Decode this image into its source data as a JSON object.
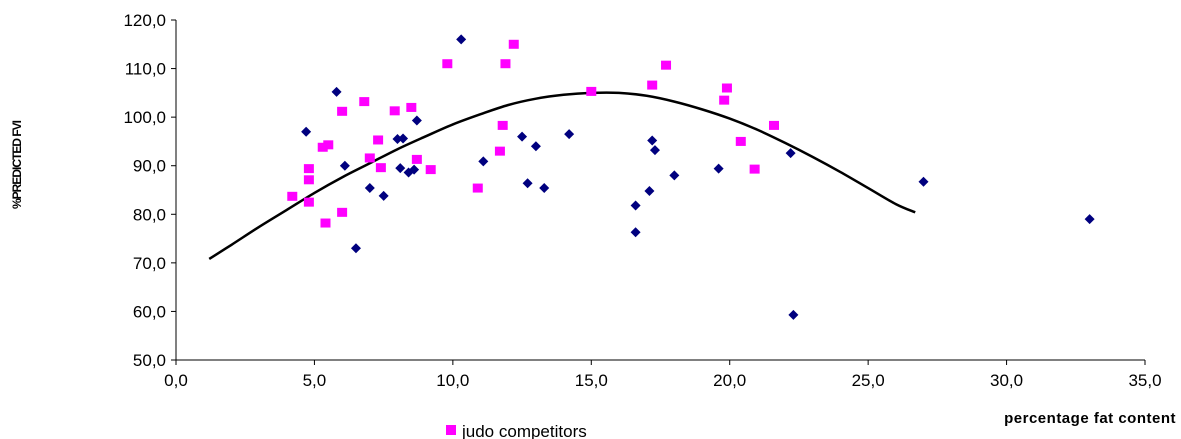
{
  "chart_data": {
    "type": "scatter",
    "xlabel": "percentage fat content",
    "ylabel": "%PREDICTED FVI",
    "xlim": [
      0,
      35
    ],
    "ylim": [
      50,
      120
    ],
    "x_ticks": [
      "0,0",
      "5,0",
      "10,0",
      "15,0",
      "20,0",
      "25,0",
      "30,0",
      "35,0"
    ],
    "y_ticks": [
      "50,0",
      "60,0",
      "70,0",
      "80,0",
      "90,0",
      "100,0",
      "110,0",
      "120,0"
    ],
    "grid": false,
    "legend_position": "bottom",
    "series": [
      {
        "marker": "diamond",
        "color": "#00007f",
        "points": [
          [
            4.7,
            97.0
          ],
          [
            5.8,
            105.2
          ],
          [
            6.1,
            90.0
          ],
          [
            6.5,
            73.0
          ],
          [
            7.0,
            85.4
          ],
          [
            7.5,
            83.8
          ],
          [
            8.0,
            95.5
          ],
          [
            8.1,
            89.5
          ],
          [
            8.2,
            95.6
          ],
          [
            8.4,
            88.6
          ],
          [
            8.6,
            89.2
          ],
          [
            8.7,
            99.3
          ],
          [
            10.3,
            116.0
          ],
          [
            11.1,
            90.9
          ],
          [
            12.5,
            96.0
          ],
          [
            12.7,
            86.4
          ],
          [
            13.0,
            94.0
          ],
          [
            13.3,
            85.4
          ],
          [
            14.2,
            96.5
          ],
          [
            16.6,
            81.8
          ],
          [
            16.6,
            76.3
          ],
          [
            17.1,
            84.8
          ],
          [
            17.2,
            95.2
          ],
          [
            17.3,
            93.2
          ],
          [
            18.0,
            88.0
          ],
          [
            19.6,
            89.4
          ],
          [
            22.2,
            92.6
          ],
          [
            22.3,
            59.3
          ],
          [
            27.0,
            86.7
          ],
          [
            33.0,
            79.0
          ]
        ]
      },
      {
        "name": "judo competitors",
        "marker": "square",
        "color": "#ff00ff",
        "points": [
          [
            4.2,
            83.7
          ],
          [
            4.8,
            89.4
          ],
          [
            4.8,
            87.1
          ],
          [
            4.8,
            82.5
          ],
          [
            5.3,
            93.8
          ],
          [
            5.4,
            78.2
          ],
          [
            5.5,
            94.3
          ],
          [
            6.0,
            101.2
          ],
          [
            6.0,
            80.4
          ],
          [
            6.8,
            103.2
          ],
          [
            7.0,
            91.6
          ],
          [
            7.3,
            95.3
          ],
          [
            7.4,
            89.6
          ],
          [
            7.9,
            101.3
          ],
          [
            8.5,
            102.0
          ],
          [
            8.7,
            91.3
          ],
          [
            9.2,
            89.2
          ],
          [
            9.8,
            111.0
          ],
          [
            10.9,
            85.4
          ],
          [
            11.7,
            93.0
          ],
          [
            11.8,
            98.3
          ],
          [
            11.9,
            111.0
          ],
          [
            12.2,
            115.0
          ],
          [
            15.0,
            105.3
          ],
          [
            17.2,
            106.6
          ],
          [
            17.7,
            110.7
          ],
          [
            19.8,
            103.5
          ],
          [
            19.9,
            106.0
          ],
          [
            20.4,
            95.0
          ],
          [
            20.9,
            89.3
          ],
          [
            21.6,
            98.3
          ]
        ]
      }
    ],
    "trendline": {
      "type": "polynomial",
      "color": "#000000",
      "points": [
        [
          1.2,
          70.8
        ],
        [
          2.0,
          73.7
        ],
        [
          3.0,
          77.4
        ],
        [
          4.0,
          80.9
        ],
        [
          5.0,
          84.4
        ],
        [
          6.0,
          87.6
        ],
        [
          7.0,
          90.5
        ],
        [
          8.0,
          93.4
        ],
        [
          9.0,
          96.0
        ],
        [
          10.0,
          98.5
        ],
        [
          11.0,
          100.6
        ],
        [
          12.0,
          102.5
        ],
        [
          13.0,
          103.8
        ],
        [
          14.0,
          104.6
        ],
        [
          15.0,
          105.0
        ],
        [
          16.0,
          105.0
        ],
        [
          17.0,
          104.4
        ],
        [
          18.0,
          103.2
        ],
        [
          19.0,
          101.6
        ],
        [
          20.0,
          99.7
        ],
        [
          21.0,
          97.4
        ],
        [
          22.0,
          94.7
        ],
        [
          23.0,
          91.8
        ],
        [
          24.0,
          88.7
        ],
        [
          25.0,
          85.4
        ],
        [
          26.0,
          82.1
        ],
        [
          26.7,
          80.4
        ]
      ]
    }
  }
}
